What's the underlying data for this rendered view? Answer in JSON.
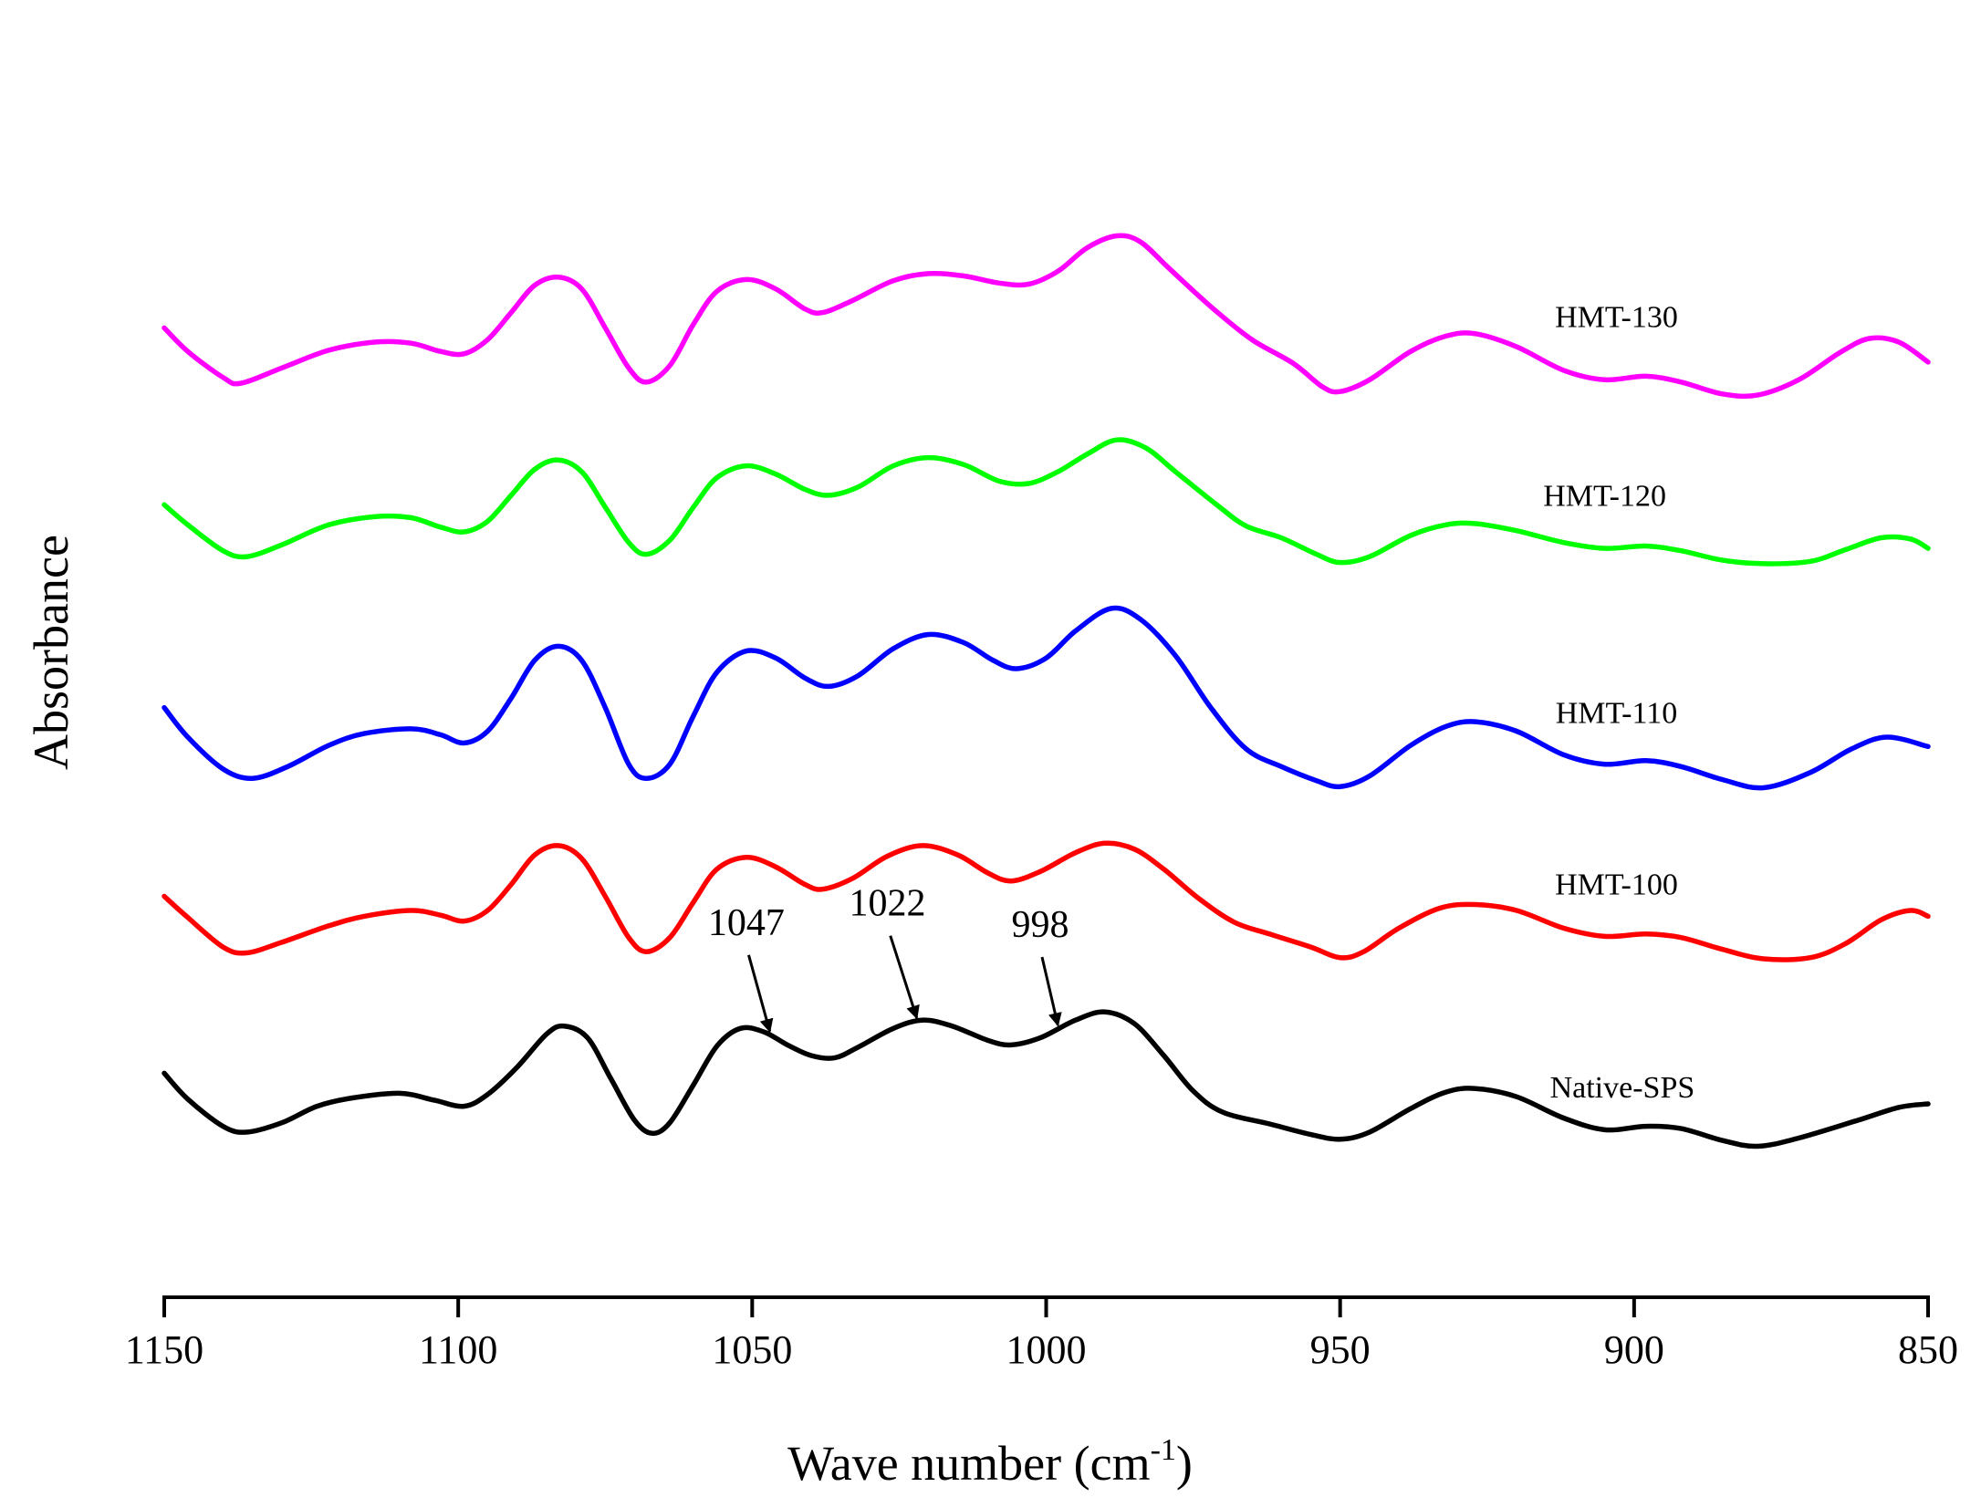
{
  "chart_data": {
    "type": "line",
    "title": "",
    "xlabel": "Wave number (cm",
    "xlabel_sup": "-1",
    "xlabel_close": ")",
    "ylabel": "Absorbance",
    "xlim": [
      1150,
      850
    ],
    "x_reversed": true,
    "xticks": [
      1150,
      1100,
      1050,
      1000,
      950,
      900,
      850
    ],
    "xtick_labels": [
      "1150",
      "1100",
      "1050",
      "1000",
      "950",
      "900",
      "850"
    ],
    "y_axis_visible": false,
    "grid": false,
    "ylim": [
      -0.05,
      1.05
    ],
    "series": [
      {
        "name": "Native-SPS",
        "color": "#000000",
        "points": [
          [
            1150,
            0.14
          ],
          [
            1146,
            0.118
          ],
          [
            1140,
            0.095
          ],
          [
            1136,
            0.09
          ],
          [
            1130,
            0.098
          ],
          [
            1124,
            0.112
          ],
          [
            1118,
            0.119
          ],
          [
            1110,
            0.123
          ],
          [
            1104,
            0.117
          ],
          [
            1099,
            0.112
          ],
          [
            1095,
            0.122
          ],
          [
            1090,
            0.145
          ],
          [
            1085,
            0.173
          ],
          [
            1082,
            0.18
          ],
          [
            1078,
            0.17
          ],
          [
            1074,
            0.135
          ],
          [
            1070,
            0.1
          ],
          [
            1067,
            0.089
          ],
          [
            1064,
            0.098
          ],
          [
            1060,
            0.13
          ],
          [
            1056,
            0.163
          ],
          [
            1052,
            0.178
          ],
          [
            1048,
            0.175
          ],
          [
            1044,
            0.164
          ],
          [
            1040,
            0.155
          ],
          [
            1036,
            0.153
          ],
          [
            1032,
            0.162
          ],
          [
            1026,
            0.178
          ],
          [
            1021,
            0.185
          ],
          [
            1016,
            0.18
          ],
          [
            1010,
            0.168
          ],
          [
            1006,
            0.164
          ],
          [
            1001,
            0.17
          ],
          [
            995,
            0.185
          ],
          [
            990,
            0.192
          ],
          [
            985,
            0.182
          ],
          [
            980,
            0.155
          ],
          [
            975,
            0.125
          ],
          [
            970,
            0.107
          ],
          [
            962,
            0.097
          ],
          [
            955,
            0.088
          ],
          [
            950,
            0.084
          ],
          [
            945,
            0.09
          ],
          [
            938,
            0.11
          ],
          [
            932,
            0.124
          ],
          [
            927,
            0.127
          ],
          [
            920,
            0.12
          ],
          [
            912,
            0.102
          ],
          [
            905,
            0.092
          ],
          [
            898,
            0.095
          ],
          [
            892,
            0.093
          ],
          [
            885,
            0.083
          ],
          [
            879,
            0.078
          ],
          [
            872,
            0.085
          ],
          [
            862,
            0.1
          ],
          [
            855,
            0.111
          ],
          [
            850,
            0.114
          ]
        ]
      },
      {
        "name": "HMT-100",
        "color": "#ff0000",
        "points": [
          [
            1150,
            0.29
          ],
          [
            1146,
            0.272
          ],
          [
            1140,
            0.247
          ],
          [
            1136,
            0.242
          ],
          [
            1130,
            0.251
          ],
          [
            1122,
            0.265
          ],
          [
            1116,
            0.273
          ],
          [
            1108,
            0.278
          ],
          [
            1103,
            0.274
          ],
          [
            1099,
            0.269
          ],
          [
            1095,
            0.278
          ],
          [
            1091,
            0.3
          ],
          [
            1087,
            0.325
          ],
          [
            1083,
            0.333
          ],
          [
            1079,
            0.322
          ],
          [
            1075,
            0.29
          ],
          [
            1071,
            0.255
          ],
          [
            1068,
            0.243
          ],
          [
            1064,
            0.255
          ],
          [
            1060,
            0.285
          ],
          [
            1056,
            0.313
          ],
          [
            1051,
            0.323
          ],
          [
            1046,
            0.315
          ],
          [
            1041,
            0.3
          ],
          [
            1038,
            0.296
          ],
          [
            1033,
            0.305
          ],
          [
            1027,
            0.324
          ],
          [
            1021,
            0.333
          ],
          [
            1015,
            0.325
          ],
          [
            1010,
            0.31
          ],
          [
            1006,
            0.303
          ],
          [
            1001,
            0.311
          ],
          [
            995,
            0.327
          ],
          [
            990,
            0.335
          ],
          [
            985,
            0.33
          ],
          [
            980,
            0.313
          ],
          [
            974,
            0.288
          ],
          [
            968,
            0.268
          ],
          [
            962,
            0.258
          ],
          [
            955,
            0.247
          ],
          [
            950,
            0.238
          ],
          [
            946,
            0.243
          ],
          [
            940,
            0.263
          ],
          [
            933,
            0.28
          ],
          [
            927,
            0.283
          ],
          [
            920,
            0.278
          ],
          [
            912,
            0.263
          ],
          [
            905,
            0.256
          ],
          [
            898,
            0.258
          ],
          [
            892,
            0.255
          ],
          [
            885,
            0.245
          ],
          [
            878,
            0.237
          ],
          [
            870,
            0.238
          ],
          [
            864,
            0.25
          ],
          [
            858,
            0.27
          ],
          [
            853,
            0.278
          ],
          [
            850,
            0.273
          ]
        ]
      },
      {
        "name": "HMT-110",
        "color": "#0000ff",
        "points": [
          [
            1150,
            0.45
          ],
          [
            1146,
            0.425
          ],
          [
            1140,
            0.398
          ],
          [
            1135,
            0.39
          ],
          [
            1129,
            0.4
          ],
          [
            1122,
            0.418
          ],
          [
            1116,
            0.428
          ],
          [
            1108,
            0.432
          ],
          [
            1103,
            0.427
          ],
          [
            1099,
            0.42
          ],
          [
            1095,
            0.43
          ],
          [
            1091,
            0.458
          ],
          [
            1087,
            0.49
          ],
          [
            1083,
            0.502
          ],
          [
            1079,
            0.49
          ],
          [
            1075,
            0.45
          ],
          [
            1071,
            0.402
          ],
          [
            1068,
            0.39
          ],
          [
            1064,
            0.402
          ],
          [
            1060,
            0.443
          ],
          [
            1056,
            0.48
          ],
          [
            1051,
            0.498
          ],
          [
            1046,
            0.492
          ],
          [
            1041,
            0.475
          ],
          [
            1037,
            0.468
          ],
          [
            1032,
            0.477
          ],
          [
            1026,
            0.5
          ],
          [
            1020,
            0.512
          ],
          [
            1014,
            0.505
          ],
          [
            1009,
            0.49
          ],
          [
            1005,
            0.483
          ],
          [
            1000,
            0.492
          ],
          [
            995,
            0.515
          ],
          [
            989,
            0.534
          ],
          [
            984,
            0.525
          ],
          [
            978,
            0.494
          ],
          [
            972,
            0.45
          ],
          [
            966,
            0.415
          ],
          [
            960,
            0.4
          ],
          [
            954,
            0.388
          ],
          [
            950,
            0.383
          ],
          [
            945,
            0.392
          ],
          [
            938,
            0.418
          ],
          [
            932,
            0.434
          ],
          [
            927,
            0.438
          ],
          [
            920,
            0.43
          ],
          [
            912,
            0.41
          ],
          [
            905,
            0.402
          ],
          [
            898,
            0.405
          ],
          [
            892,
            0.4
          ],
          [
            885,
            0.389
          ],
          [
            878,
            0.382
          ],
          [
            870,
            0.395
          ],
          [
            863,
            0.415
          ],
          [
            857,
            0.425
          ],
          [
            850,
            0.417
          ]
        ]
      },
      {
        "name": "HMT-120",
        "color": "#00ff00",
        "points": [
          [
            1150,
            0.622
          ],
          [
            1146,
            0.605
          ],
          [
            1140,
            0.583
          ],
          [
            1136,
            0.578
          ],
          [
            1130,
            0.588
          ],
          [
            1122,
            0.605
          ],
          [
            1114,
            0.612
          ],
          [
            1108,
            0.611
          ],
          [
            1103,
            0.603
          ],
          [
            1099,
            0.599
          ],
          [
            1095,
            0.608
          ],
          [
            1091,
            0.63
          ],
          [
            1087,
            0.652
          ],
          [
            1083,
            0.66
          ],
          [
            1079,
            0.65
          ],
          [
            1075,
            0.62
          ],
          [
            1071,
            0.59
          ],
          [
            1068,
            0.58
          ],
          [
            1064,
            0.592
          ],
          [
            1060,
            0.62
          ],
          [
            1056,
            0.645
          ],
          [
            1051,
            0.655
          ],
          [
            1046,
            0.648
          ],
          [
            1041,
            0.635
          ],
          [
            1037,
            0.63
          ],
          [
            1032,
            0.637
          ],
          [
            1026,
            0.655
          ],
          [
            1020,
            0.662
          ],
          [
            1014,
            0.656
          ],
          [
            1008,
            0.642
          ],
          [
            1003,
            0.64
          ],
          [
            998,
            0.65
          ],
          [
            993,
            0.665
          ],
          [
            988,
            0.677
          ],
          [
            983,
            0.67
          ],
          [
            978,
            0.65
          ],
          [
            971,
            0.622
          ],
          [
            966,
            0.604
          ],
          [
            960,
            0.594
          ],
          [
            954,
            0.58
          ],
          [
            950,
            0.573
          ],
          [
            945,
            0.578
          ],
          [
            938,
            0.596
          ],
          [
            932,
            0.605
          ],
          [
            927,
            0.606
          ],
          [
            920,
            0.6
          ],
          [
            912,
            0.59
          ],
          [
            905,
            0.585
          ],
          [
            898,
            0.587
          ],
          [
            892,
            0.583
          ],
          [
            885,
            0.575
          ],
          [
            878,
            0.572
          ],
          [
            870,
            0.574
          ],
          [
            864,
            0.584
          ],
          [
            858,
            0.594
          ],
          [
            853,
            0.593
          ],
          [
            850,
            0.585
          ]
        ]
      },
      {
        "name": "HMT-130",
        "color": "#ff00ff",
        "points": [
          [
            1150,
            0.772
          ],
          [
            1146,
            0.752
          ],
          [
            1140,
            0.73
          ],
          [
            1137,
            0.725
          ],
          [
            1130,
            0.738
          ],
          [
            1122,
            0.753
          ],
          [
            1114,
            0.76
          ],
          [
            1108,
            0.759
          ],
          [
            1103,
            0.752
          ],
          [
            1099,
            0.75
          ],
          [
            1095,
            0.762
          ],
          [
            1091,
            0.785
          ],
          [
            1087,
            0.808
          ],
          [
            1083,
            0.815
          ],
          [
            1079,
            0.805
          ],
          [
            1075,
            0.772
          ],
          [
            1071,
            0.738
          ],
          [
            1068,
            0.726
          ],
          [
            1064,
            0.74
          ],
          [
            1060,
            0.775
          ],
          [
            1056,
            0.803
          ],
          [
            1051,
            0.813
          ],
          [
            1046,
            0.805
          ],
          [
            1041,
            0.788
          ],
          [
            1038,
            0.785
          ],
          [
            1033,
            0.795
          ],
          [
            1026,
            0.812
          ],
          [
            1020,
            0.818
          ],
          [
            1014,
            0.816
          ],
          [
            1008,
            0.81
          ],
          [
            1003,
            0.809
          ],
          [
            998,
            0.82
          ],
          [
            993,
            0.84
          ],
          [
            988,
            0.85
          ],
          [
            984,
            0.845
          ],
          [
            979,
            0.822
          ],
          [
            972,
            0.79
          ],
          [
            965,
            0.762
          ],
          [
            958,
            0.742
          ],
          [
            953,
            0.722
          ],
          [
            950,
            0.718
          ],
          [
            945,
            0.728
          ],
          [
            938,
            0.752
          ],
          [
            932,
            0.765
          ],
          [
            927,
            0.767
          ],
          [
            920,
            0.756
          ],
          [
            912,
            0.736
          ],
          [
            905,
            0.728
          ],
          [
            898,
            0.731
          ],
          [
            892,
            0.726
          ],
          [
            885,
            0.716
          ],
          [
            879,
            0.715
          ],
          [
            872,
            0.728
          ],
          [
            865,
            0.751
          ],
          [
            860,
            0.763
          ],
          [
            855,
            0.76
          ],
          [
            850,
            0.743
          ]
        ]
      }
    ],
    "series_labels": [
      {
        "text": "HMT-130",
        "series": "HMT-130"
      },
      {
        "text": "HMT-120",
        "series": "HMT-120"
      },
      {
        "text": "HMT-110",
        "series": "HMT-110"
      },
      {
        "text": "HMT-100",
        "series": "HMT-100"
      },
      {
        "text": "Native-SPS",
        "series": "Native-SPS"
      }
    ],
    "annotations": [
      {
        "text": "1047",
        "x": 1047
      },
      {
        "text": "1022",
        "x": 1022
      },
      {
        "text": "998",
        "x": 998
      }
    ]
  }
}
